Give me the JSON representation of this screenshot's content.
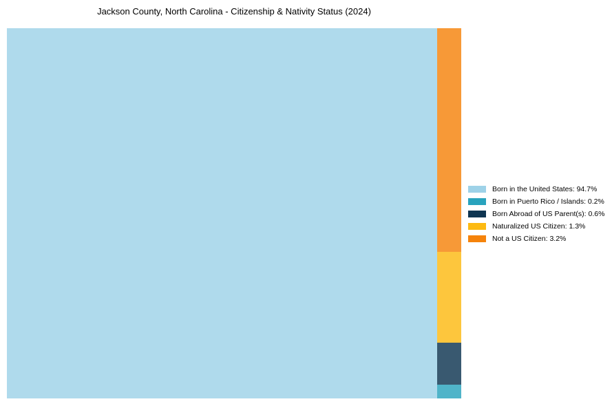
{
  "chart_data": {
    "type": "treemap",
    "title": "Jackson County, North Carolina - Citizenship & Nativity Status (2024)",
    "categories": [
      "Born in the United States",
      "Born in Puerto Rico / Islands",
      "Born Abroad of US Parent(s)",
      "Naturalized US Citizen",
      "Not a US Citizen"
    ],
    "values": [
      94.7,
      0.2,
      0.6,
      1.3,
      3.2
    ],
    "unit": "%",
    "colors": [
      "#9ED2E8",
      "#29A3BD",
      "#0E3551",
      "#FDBA12",
      "#F5830B"
    ],
    "block_opacity": 0.82,
    "legend_position": "right",
    "layout": {
      "main_block": "Born in the United States",
      "minor_column_order_top_to_bottom": [
        "Not a US Citizen",
        "Naturalized US Citizen",
        "Born Abroad of US Parent(s)",
        "Born in Puerto Rico / Islands"
      ]
    }
  },
  "legend": {
    "items": [
      {
        "text": "Born in the United States: 94.7%"
      },
      {
        "text": "Born in Puerto Rico / Islands: 0.2%"
      },
      {
        "text": "Born Abroad of US Parent(s): 0.6%"
      },
      {
        "text": "Naturalized US Citizen: 1.3%"
      },
      {
        "text": "Not a US Citizen: 3.2%"
      }
    ]
  }
}
